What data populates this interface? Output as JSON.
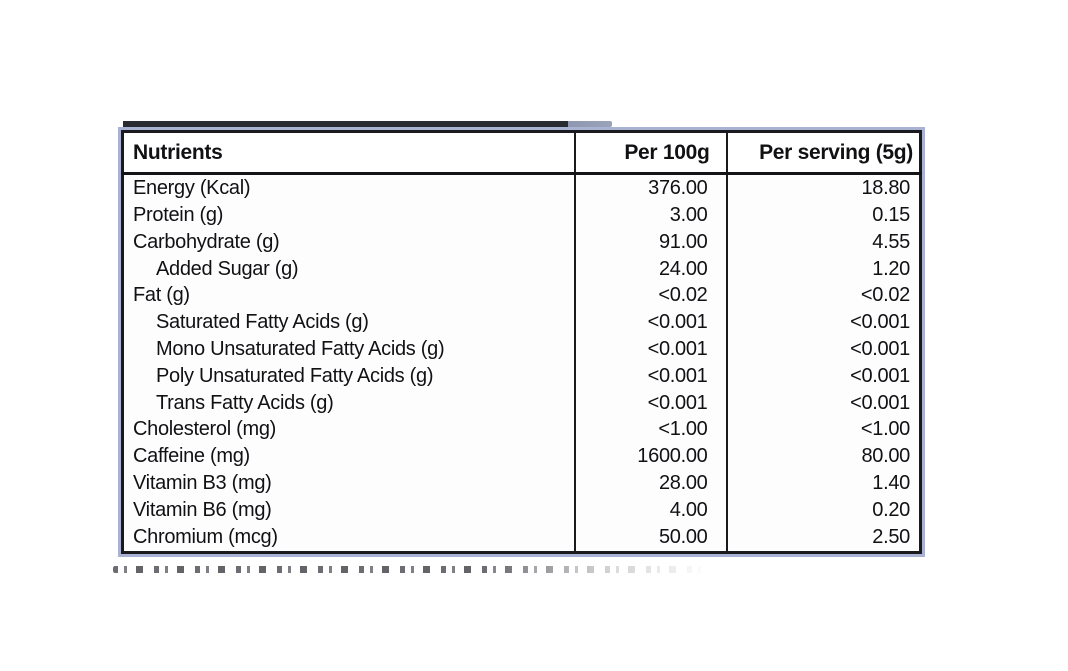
{
  "table": {
    "columns": [
      "Nutrients",
      "Per 100g",
      "Per serving (5g)"
    ],
    "rows": [
      {
        "label": "Energy (Kcal)",
        "indent": false,
        "per_100g": "376.00",
        "per_serving": "18.80"
      },
      {
        "label": "Protein (g)",
        "indent": false,
        "per_100g": "3.00",
        "per_serving": "0.15"
      },
      {
        "label": "Carbohydrate (g)",
        "indent": false,
        "per_100g": "91.00",
        "per_serving": "4.55"
      },
      {
        "label": "Added Sugar (g)",
        "indent": true,
        "per_100g": "24.00",
        "per_serving": "1.20"
      },
      {
        "label": "Fat (g)",
        "indent": false,
        "per_100g": "<0.02",
        "per_serving": "<0.02"
      },
      {
        "label": "Saturated Fatty Acids (g)",
        "indent": true,
        "per_100g": "<0.001",
        "per_serving": "<0.001"
      },
      {
        "label": "Mono Unsaturated Fatty Acids (g)",
        "indent": true,
        "per_100g": "<0.001",
        "per_serving": "<0.001"
      },
      {
        "label": "Poly Unsaturated Fatty Acids (g)",
        "indent": true,
        "per_100g": "<0.001",
        "per_serving": "<0.001"
      },
      {
        "label": "Trans Fatty Acids (g)",
        "indent": true,
        "per_100g": "<0.001",
        "per_serving": "<0.001"
      },
      {
        "label": "Cholesterol (mg)",
        "indent": false,
        "per_100g": "<1.00",
        "per_serving": "<1.00"
      },
      {
        "label": "Caffeine (mg)",
        "indent": false,
        "per_100g": "1600.00",
        "per_serving": "80.00"
      },
      {
        "label": "Vitamin B3 (mg)",
        "indent": false,
        "per_100g": "28.00",
        "per_serving": "1.40"
      },
      {
        "label": "Vitamin B6 (mg)",
        "indent": false,
        "per_100g": "4.00",
        "per_serving": "0.20"
      },
      {
        "label": "Chromium (mcg)",
        "indent": false,
        "per_100g": "50.00",
        "per_serving": "2.50"
      }
    ]
  },
  "colors": {
    "outer_frame": "#a9b2d2",
    "table_border": "#1a1a1e",
    "text": "#111114",
    "background": "#ffffff",
    "cropped_strip": "#2a2a31"
  }
}
